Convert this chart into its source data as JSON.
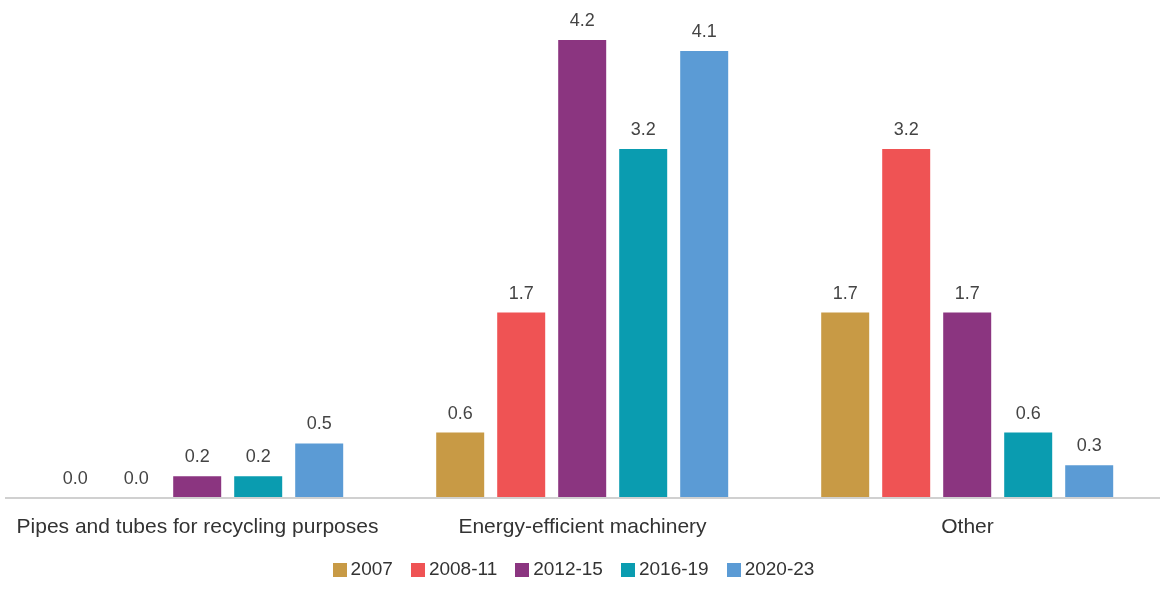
{
  "chart_data": {
    "type": "bar",
    "categories": [
      "Pipes and tubes for recycling purposes",
      "Energy-efficient machinery",
      "Other"
    ],
    "series": [
      {
        "name": "2007",
        "color": "#c89a45",
        "values": [
          0.0,
          0.6,
          1.7
        ],
        "value_labels": [
          "0.0",
          "0.6",
          "1.7"
        ]
      },
      {
        "name": "2008-11",
        "color": "#ef5354",
        "values": [
          0.0,
          1.7,
          3.2
        ],
        "value_labels": [
          "0.0",
          "1.7",
          "3.2"
        ]
      },
      {
        "name": "2012-15",
        "color": "#8b3580",
        "values": [
          0.2,
          4.2,
          1.7
        ],
        "value_labels": [
          "0.2",
          "4.2",
          "1.7"
        ]
      },
      {
        "name": "2016-19",
        "color": "#0a9cb0",
        "values": [
          0.2,
          3.2,
          0.6
        ],
        "value_labels": [
          "0.2",
          "3.2",
          "0.6"
        ]
      },
      {
        "name": "2020-23",
        "color": "#5b9bd5",
        "values": [
          0.5,
          4.1,
          0.3
        ],
        "value_labels": [
          "0.5",
          "4.1",
          "0.3"
        ]
      }
    ],
    "legend": "bottom",
    "grid": false
  }
}
